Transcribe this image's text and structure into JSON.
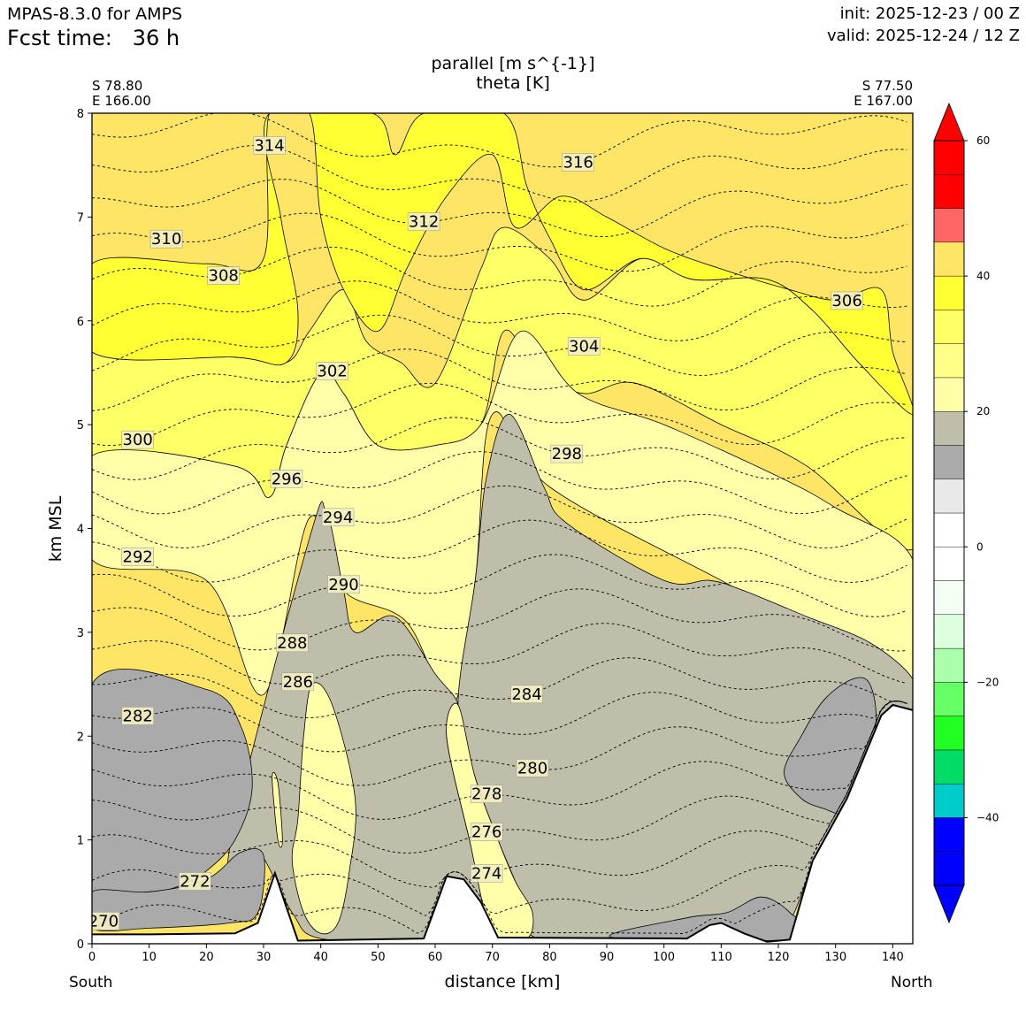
{
  "header": {
    "model": "MPAS-8.3.0 for AMPS",
    "forecast": "Fcst time:   36 h",
    "init": "init: 2025-12-23 / 00 Z",
    "valid": "valid: 2025-12-24 / 12 Z"
  },
  "cross_section": {
    "start_lat": "S 78.80",
    "start_lon": "E 166.00",
    "end_lat": "S 77.50",
    "end_lon": "E 167.00",
    "left_end": "South",
    "right_end": "North"
  },
  "chart_data": {
    "type": "contour",
    "title_line1": "parallel [m s^{-1}]",
    "title_line2": "theta [K]",
    "xlabel": "distance [km]",
    "ylabel": "km MSL",
    "xlim": [
      0,
      143.5
    ],
    "ylim": [
      0,
      8
    ],
    "xticks": [
      0,
      10,
      20,
      30,
      40,
      50,
      60,
      70,
      80,
      90,
      100,
      110,
      120,
      130,
      140
    ],
    "yticks": [
      0,
      1,
      2,
      3,
      4,
      5,
      6,
      7,
      8
    ],
    "colorbar": {
      "variable": "parallel wind [m s^{-1}]",
      "range": [
        -60,
        60
      ],
      "step": 5,
      "ticks": [
        -40,
        -20,
        0,
        20,
        40,
        60
      ],
      "tick_labels": [
        "−40",
        "−20",
        "0",
        "20",
        "40",
        "60"
      ],
      "colors": [
        "#0000ff",
        "#0000ff",
        "#00cccc",
        "#00dd66",
        "#22ff22",
        "#66ff66",
        "#aaffaa",
        "#ddffdd",
        "#f4fff4",
        "#ffffff",
        "#ffffff",
        "#e9e9e9",
        "#aaaaaa",
        "#bebeaa",
        "#ffffaa",
        "#ffff66",
        "#ffff33",
        "#ffe566",
        "#ff6666",
        "#ff0000"
      ]
    },
    "terrain_profile": [
      [
        0,
        0.09
      ],
      [
        10,
        0.09
      ],
      [
        25,
        0.1
      ],
      [
        29,
        0.2
      ],
      [
        32,
        0.68
      ],
      [
        34,
        0.35
      ],
      [
        36,
        0.03
      ],
      [
        58,
        0.05
      ],
      [
        62,
        0.65
      ],
      [
        65,
        0.62
      ],
      [
        68,
        0.4
      ],
      [
        71,
        0.06
      ],
      [
        104,
        0.05
      ],
      [
        108,
        0.18
      ],
      [
        110,
        0.2
      ],
      [
        114,
        0.1
      ],
      [
        118,
        0.02
      ],
      [
        122,
        0.04
      ],
      [
        126,
        0.8
      ],
      [
        132,
        1.4
      ],
      [
        138,
        2.2
      ],
      [
        140,
        2.3
      ],
      [
        143.5,
        2.25
      ]
    ],
    "shaded_regions": [
      {
        "value_range": [
          15,
          20
        ],
        "color": "#aaaaaa",
        "outline": [
          [
            0,
            2.5
          ],
          [
            20,
            2.45
          ],
          [
            26,
            2.1
          ],
          [
            28,
            1.5
          ],
          [
            25,
            1.0
          ],
          [
            20,
            0.7
          ],
          [
            15,
            0.55
          ],
          [
            10,
            0.5
          ],
          [
            0,
            0.5
          ]
        ]
      },
      {
        "value_range": [
          15,
          20
        ],
        "color": "#aaaaaa",
        "outline": [
          [
            0,
            0.5
          ],
          [
            10,
            0.5
          ],
          [
            20,
            0.62
          ],
          [
            26,
            0.88
          ],
          [
            30,
            0.85
          ],
          [
            29,
            0.3
          ],
          [
            24,
            0.2
          ],
          [
            10,
            0.15
          ],
          [
            0,
            0.15
          ]
        ]
      },
      {
        "value_range": [
          15,
          20
        ],
        "color": "#aaaaaa",
        "outline": [
          [
            121,
            1.65
          ],
          [
            124,
            2.0
          ],
          [
            128,
            2.35
          ],
          [
            133,
            2.55
          ],
          [
            136,
            2.5
          ],
          [
            137,
            2.1
          ],
          [
            134,
            1.5
          ],
          [
            132,
            1.25
          ],
          [
            128,
            1.3
          ],
          [
            124,
            1.4
          ]
        ]
      },
      {
        "value_range": [
          15,
          20
        ],
        "color": "#aaaaaa",
        "outline": [
          [
            91,
            0.06
          ],
          [
            104,
            0.25
          ],
          [
            111,
            0.3
          ],
          [
            117,
            0.45
          ],
          [
            122,
            0.3
          ],
          [
            124,
            0.05
          ]
        ]
      },
      {
        "value_range": [
          30,
          35
        ],
        "color": "#ffffaa",
        "outline": [
          [
            31.5,
            1.6
          ],
          [
            32.5,
            1.0
          ],
          [
            33.3,
            1.0
          ],
          [
            32.5,
            1.55
          ]
        ]
      },
      {
        "value_range": [
          30,
          35
        ],
        "color": "#ffffaa",
        "outline": [
          [
            35,
            0.8
          ],
          [
            36,
            1.2
          ],
          [
            37,
            2.0
          ],
          [
            38.5,
            2.5
          ],
          [
            42,
            2.3
          ],
          [
            46,
            1.4
          ],
          [
            45,
            0.7
          ],
          [
            43,
            0.2
          ],
          [
            40,
            0.1
          ],
          [
            37,
            0.3
          ]
        ]
      },
      {
        "value_range": [
          30,
          35
        ],
        "color": "#ffffaa",
        "outline": [
          [
            62,
            2.0
          ],
          [
            64,
            2.3
          ],
          [
            67,
            1.6
          ],
          [
            71,
            1.0
          ],
          [
            74,
            0.6
          ],
          [
            77,
            0.3
          ],
          [
            76,
            0.05
          ],
          [
            70,
            0.1
          ],
          [
            66,
            1.0
          ]
        ]
      },
      {
        "value_range": [
          20,
          25
        ],
        "color": "#bebeaa",
        "outline": [
          [
            38,
            3.9
          ],
          [
            41,
            4.15
          ],
          [
            44,
            3.4
          ],
          [
            46,
            3.0
          ],
          [
            53,
            3.15
          ],
          [
            60,
            2.6
          ],
          [
            64,
            2.3
          ],
          [
            62,
            2.0
          ],
          [
            66,
            1.0
          ],
          [
            70,
            0.1
          ],
          [
            58,
            0.05
          ],
          [
            40,
            0.05
          ],
          [
            35,
            0.3
          ],
          [
            29,
            0.9
          ],
          [
            24,
            0.9
          ]
        ]
      },
      {
        "value_range": [
          20,
          25
        ],
        "color": "#bebeaa",
        "outline": [
          [
            67,
            3.5
          ],
          [
            69,
            4.5
          ],
          [
            73,
            5.1
          ],
          [
            79,
            4.4
          ],
          [
            83,
            4.05
          ],
          [
            100,
            3.5
          ],
          [
            108,
            3.5
          ],
          [
            114,
            3.4
          ],
          [
            125,
            3.15
          ],
          [
            136,
            2.9
          ],
          [
            143.5,
            2.55
          ],
          [
            143.5,
            2.25
          ],
          [
            128,
            1.0
          ],
          [
            120,
            0.1
          ],
          [
            104,
            0.05
          ],
          [
            78,
            0.05
          ],
          [
            74,
            0.6
          ],
          [
            71,
            1.0
          ],
          [
            67,
            1.6
          ],
          [
            64,
            2.3
          ]
        ]
      },
      {
        "value_range": [
          30,
          35
        ],
        "color": "#ffffaa",
        "outline": [
          [
            0,
            3.7
          ],
          [
            20,
            3.5
          ],
          [
            30,
            2.4
          ],
          [
            38,
            4.1
          ],
          [
            44,
            3.4
          ],
          [
            55,
            3.1
          ],
          [
            63,
            2.3
          ],
          [
            67,
            3.5
          ],
          [
            70,
            5.1
          ],
          [
            80,
            4.4
          ],
          [
            110,
            3.5
          ],
          [
            143.5,
            2.55
          ],
          [
            143.5,
            3.7
          ],
          [
            130,
            4.2
          ],
          [
            120,
            4.5
          ],
          [
            100,
            5.0
          ],
          [
            85,
            5.3
          ],
          [
            75,
            5.9
          ],
          [
            68,
            5.0
          ],
          [
            60,
            4.8
          ],
          [
            50,
            4.8
          ],
          [
            44,
            5.3
          ],
          [
            40,
            5.5
          ],
          [
            34,
            4.8
          ],
          [
            31,
            4.3
          ],
          [
            25,
            4.6
          ],
          [
            0,
            4.7
          ]
        ]
      },
      {
        "value_range": [
          35,
          40
        ],
        "color": "#ffff66",
        "outline": [
          [
            0,
            4.7
          ],
          [
            25,
            4.6
          ],
          [
            31,
            4.3
          ],
          [
            34,
            4.8
          ],
          [
            40,
            5.5
          ],
          [
            44,
            5.3
          ],
          [
            50,
            4.8
          ],
          [
            60,
            4.8
          ],
          [
            68,
            5.0
          ],
          [
            72,
            5.9
          ],
          [
            78,
            5.5
          ],
          [
            86,
            5.3
          ],
          [
            95,
            5.4
          ],
          [
            110,
            5.0
          ],
          [
            125,
            4.6
          ],
          [
            143.5,
            3.8
          ],
          [
            143.5,
            5.1
          ],
          [
            134,
            5.6
          ],
          [
            126,
            6.1
          ],
          [
            118,
            6.4
          ],
          [
            105,
            6.4
          ],
          [
            96,
            6.6
          ],
          [
            86,
            6.2
          ],
          [
            80,
            6.6
          ],
          [
            72,
            6.9
          ],
          [
            68,
            6.5
          ],
          [
            60,
            5.4
          ],
          [
            54,
            5.6
          ],
          [
            48,
            5.8
          ],
          [
            44,
            6.3
          ],
          [
            38,
            5.9
          ],
          [
            34,
            5.6
          ],
          [
            25,
            5.65
          ],
          [
            0,
            5.7
          ]
        ]
      },
      {
        "value_range": [
          40,
          45
        ],
        "color": "#ffff33",
        "outline": [
          [
            0,
            5.7
          ],
          [
            25,
            5.65
          ],
          [
            34,
            5.6
          ],
          [
            36,
            6.1
          ],
          [
            33,
            7.0
          ],
          [
            31,
            8.0
          ],
          [
            49,
            8.0
          ],
          [
            53,
            7.6
          ],
          [
            58,
            8.0
          ],
          [
            72,
            8.0
          ],
          [
            76,
            7.3
          ],
          [
            80,
            6.8
          ],
          [
            86,
            6.3
          ],
          [
            96,
            6.6
          ],
          [
            105,
            6.4
          ],
          [
            118,
            6.4
          ],
          [
            126,
            6.1
          ],
          [
            134,
            5.6
          ],
          [
            143.5,
            5.1
          ],
          [
            140,
            5.7
          ],
          [
            138,
            6.3
          ],
          [
            130,
            6.2
          ],
          [
            122,
            6.3
          ],
          [
            110,
            6.5
          ],
          [
            100,
            6.7
          ],
          [
            90,
            7.0
          ],
          [
            82,
            7.2
          ],
          [
            74,
            6.9
          ],
          [
            70,
            7.6
          ],
          [
            62,
            7.2
          ],
          [
            55,
            6.5
          ],
          [
            50,
            5.9
          ],
          [
            44,
            6.3
          ],
          [
            40,
            7.0
          ],
          [
            38,
            8.0
          ],
          [
            31,
            8.0
          ],
          [
            30,
            6.6
          ],
          [
            20,
            6.55
          ],
          [
            0,
            6.55
          ]
        ]
      },
      {
        "value_range": [
          50,
          55
        ],
        "color": "#ff6666",
        "outline": [
          [
            128,
            7.45
          ],
          [
            132,
            7.85
          ],
          [
            136,
            8.0
          ],
          [
            140,
            7.7
          ],
          [
            142,
            6.9
          ],
          [
            141.5,
            6.3
          ],
          [
            139,
            6.2
          ],
          [
            135,
            6.7
          ],
          [
            131,
            7.2
          ]
        ]
      }
    ],
    "theta_contours_K": [
      270,
      272,
      274,
      276,
      278,
      280,
      282,
      284,
      286,
      288,
      290,
      292,
      294,
      296,
      298,
      300,
      302,
      304,
      306,
      308,
      310,
      312,
      314,
      316
    ]
  }
}
